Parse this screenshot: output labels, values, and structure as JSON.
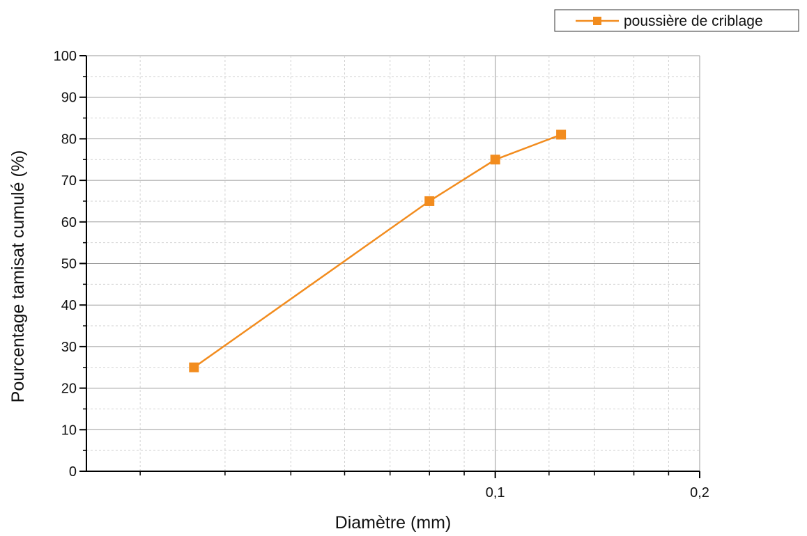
{
  "chart_data": {
    "type": "line",
    "xlabel": "Diamètre (mm)",
    "ylabel": "Pourcentage tamisat cumulé (%)",
    "x_scale": "log",
    "xlim": [
      0.025,
      0.2
    ],
    "ylim": [
      0,
      100
    ],
    "x_ticks": [
      {
        "value": 0.1,
        "label": "0,1"
      },
      {
        "value": 0.2,
        "label": "0,2"
      }
    ],
    "y_ticks": [
      0,
      10,
      20,
      30,
      40,
      50,
      60,
      70,
      80,
      90,
      100
    ],
    "grid": true,
    "legend": "top-right",
    "series": [
      {
        "name": "poussière de criblage",
        "color": "#F28C1E",
        "marker": "square",
        "x": [
          0.036,
          0.08,
          0.1,
          0.125
        ],
        "y": [
          25,
          65,
          75,
          81
        ]
      }
    ]
  }
}
